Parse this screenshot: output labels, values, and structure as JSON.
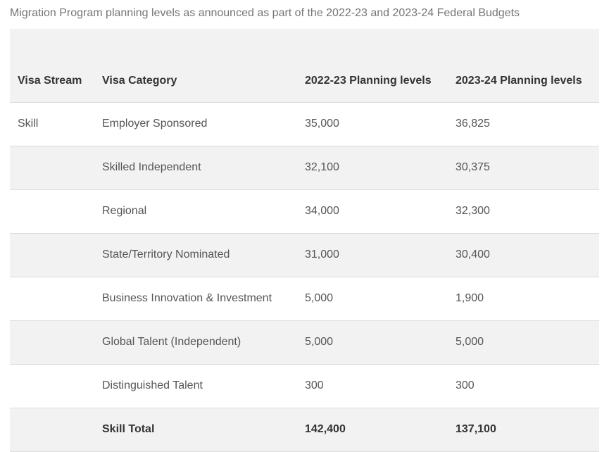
{
  "caption": "Migration Program planning levels as announced as part of the 2022-23 and 2023-24 Federal Budgets",
  "headers": {
    "stream": "Visa Stream",
    "category": "Visa Category",
    "y2022": "2022-23 Planning levels",
    "y2023": "2023-24 Planning levels"
  },
  "rows": [
    {
      "stream": "Skill",
      "category": "Employer Sponsored",
      "y2022": "35,000",
      "y2023": "36,825"
    },
    {
      "stream": "",
      "category": "Skilled Independent",
      "y2022": "32,100",
      "y2023": "30,375"
    },
    {
      "stream": "",
      "category": "Regional",
      "y2022": "34,000",
      "y2023": "32,300"
    },
    {
      "stream": "",
      "category": "State/Territory Nominated",
      "y2022": "31,000",
      "y2023": "30,400"
    },
    {
      "stream": "",
      "category": "Business Innovation & Investment",
      "y2022": "5,000",
      "y2023": "1,900"
    },
    {
      "stream": "",
      "category": "Global Talent (Independent)",
      "y2022": "5,000",
      "y2023": "5,000"
    },
    {
      "stream": "",
      "category": "Distinguished Talent",
      "y2022": "300",
      "y2023": "300"
    }
  ],
  "total": {
    "stream": "",
    "category": "Skill Total",
    "y2022": "142,400",
    "y2023": "137,100"
  }
}
